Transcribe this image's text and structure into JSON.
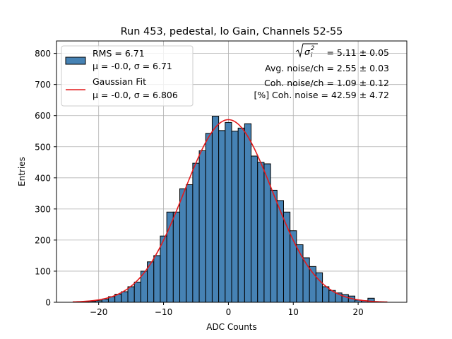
{
  "chart_data": {
    "type": "bar",
    "title": "Run 453, pedestal, lo Gain, Channels 52-55",
    "xlabel": "ADC Counts",
    "ylabel": "Entries",
    "xlim": [
      -26.5,
      27.5
    ],
    "ylim": [
      0,
      840
    ],
    "xticks": [
      -20,
      -10,
      0,
      10,
      20
    ],
    "xtick_labels": [
      "−20",
      "−10",
      "0",
      "10",
      "20"
    ],
    "yticks": [
      0,
      100,
      200,
      300,
      400,
      500,
      600,
      700,
      800
    ],
    "grid": true,
    "bin_width": 1,
    "bins": [
      {
        "x": -22,
        "value": 2
      },
      {
        "x": -21,
        "value": 3
      },
      {
        "x": -20,
        "value": 5
      },
      {
        "x": -19,
        "value": 10
      },
      {
        "x": -18,
        "value": 18
      },
      {
        "x": -17,
        "value": 26
      },
      {
        "x": -16,
        "value": 34
      },
      {
        "x": -15,
        "value": 50
      },
      {
        "x": -14,
        "value": 65
      },
      {
        "x": -13,
        "value": 100
      },
      {
        "x": -12,
        "value": 130
      },
      {
        "x": -11,
        "value": 150
      },
      {
        "x": -10,
        "value": 213
      },
      {
        "x": -9,
        "value": 290
      },
      {
        "x": -8,
        "value": 290
      },
      {
        "x": -7,
        "value": 365
      },
      {
        "x": -6,
        "value": 378
      },
      {
        "x": -5,
        "value": 447
      },
      {
        "x": -4,
        "value": 487
      },
      {
        "x": -3,
        "value": 543
      },
      {
        "x": -2,
        "value": 598
      },
      {
        "x": -1,
        "value": 552
      },
      {
        "x": 0,
        "value": 578
      },
      {
        "x": 1,
        "value": 550
      },
      {
        "x": 2,
        "value": 560
      },
      {
        "x": 3,
        "value": 574
      },
      {
        "x": 4,
        "value": 470
      },
      {
        "x": 5,
        "value": 450
      },
      {
        "x": 6,
        "value": 445
      },
      {
        "x": 7,
        "value": 360
      },
      {
        "x": 8,
        "value": 327
      },
      {
        "x": 9,
        "value": 290
      },
      {
        "x": 10,
        "value": 230
      },
      {
        "x": 11,
        "value": 185
      },
      {
        "x": 12,
        "value": 143
      },
      {
        "x": 13,
        "value": 115
      },
      {
        "x": 14,
        "value": 95
      },
      {
        "x": 15,
        "value": 50
      },
      {
        "x": 16,
        "value": 38
      },
      {
        "x": 17,
        "value": 30
      },
      {
        "x": 18,
        "value": 25
      },
      {
        "x": 19,
        "value": 20
      },
      {
        "x": 20,
        "value": 7
      },
      {
        "x": 21,
        "value": 5
      },
      {
        "x": 22,
        "value": 13
      },
      {
        "x": 23,
        "value": 2
      }
    ],
    "fit": {
      "mu": 0.0,
      "sigma": 6.806,
      "amplitude": 587,
      "x_range": [
        -24,
        24.5
      ]
    },
    "legend": {
      "position": "top-left",
      "entries": [
        {
          "label": "RMS = 6.71",
          "sublabel": "μ = -0.0, σ = 6.71",
          "kind": "hist"
        },
        {
          "label": "Gaussian Fit",
          "sublabel": "μ = -0.0, σ = 6.806",
          "kind": "line"
        }
      ]
    },
    "annotations": [
      {
        "label": "σ",
        "sub": "i",
        "sup": "2",
        "value": "= 5.11 ± 0.05"
      },
      {
        "value": "Avg. noise/ch = 2.55 ± 0.03"
      },
      {
        "value": "Coh. noise/ch = 1.09 ± 0.12"
      },
      {
        "value": "[%] Coh. noise = 42.59 ± 4.72"
      }
    ],
    "colors": {
      "bar_fill": "#4682b4",
      "bar_edge": "#000000",
      "fit_line": "#e41a1c",
      "grid": "#b0b0b0"
    }
  }
}
